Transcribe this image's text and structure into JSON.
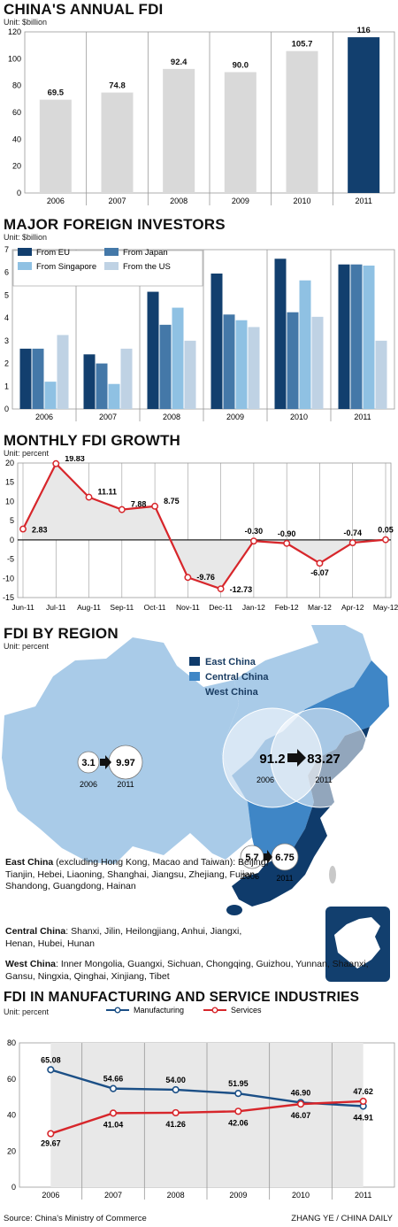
{
  "chart_data": [
    {
      "type": "bar",
      "title": "CHINA'S ANNUAL FDI",
      "unit": "Unit: $billion",
      "categories": [
        "2006",
        "2007",
        "2008",
        "2009",
        "2010",
        "2011"
      ],
      "values": [
        69.5,
        74.8,
        92.4,
        90.0,
        105.7,
        116
      ],
      "value_labels": [
        "69.5",
        "74.8",
        "92.4",
        "90.0",
        "105.7",
        "116"
      ],
      "ylim": [
        0,
        120
      ],
      "yticks": [
        0,
        20,
        40,
        60,
        80,
        100,
        120
      ],
      "colors": {
        "bar": "#d9d9d9",
        "highlight": "#123f6e"
      }
    },
    {
      "type": "bar",
      "title": "MAJOR FOREIGN INVESTORS",
      "unit": "Unit: $billion",
      "categories": [
        "2006",
        "2007",
        "2008",
        "2009",
        "2010",
        "2011"
      ],
      "series": [
        {
          "name": "From EU",
          "color": "#123f6e",
          "values": [
            2.65,
            2.4,
            5.15,
            5.95,
            6.6,
            6.35
          ]
        },
        {
          "name": "From Japan",
          "color": "#4478a8",
          "values": [
            2.65,
            2.0,
            3.7,
            4.15,
            4.25,
            6.35
          ]
        },
        {
          "name": "From Singapore",
          "color": "#8fc1e3",
          "values": [
            1.2,
            1.1,
            4.45,
            3.9,
            5.65,
            6.3
          ]
        },
        {
          "name": "From the US",
          "color": "#bfd2e4",
          "values": [
            3.25,
            2.65,
            3.0,
            3.6,
            4.05,
            3.0
          ]
        }
      ],
      "ylim": [
        0,
        7
      ],
      "yticks": [
        0,
        1,
        2,
        3,
        4,
        5,
        6,
        7
      ]
    },
    {
      "type": "line",
      "title": "MONTHLY FDI GROWTH",
      "unit": "Unit: percent",
      "x": [
        "Jun-11",
        "Jul-11",
        "Aug-11",
        "Sep-11",
        "Oct-11",
        "Nov-11",
        "Dec-11",
        "Jan-12",
        "Feb-12",
        "Mar-12",
        "Apr-12",
        "May-12"
      ],
      "values": [
        2.83,
        19.83,
        11.11,
        7.88,
        8.75,
        -9.76,
        -12.73,
        -0.3,
        -0.9,
        -6.07,
        -0.74,
        0.05
      ],
      "value_labels": [
        "2.83",
        "19.83",
        "11.11",
        "7.88",
        "8.75",
        "-9.76",
        "-12.73",
        "-0.30",
        "-0.90",
        "-6.07",
        "-0.74",
        "0.05"
      ],
      "ylim": [
        -15,
        20
      ],
      "yticks": [
        20,
        15,
        10,
        5,
        0,
        -5,
        -10,
        -15
      ],
      "colors": {
        "line": "#d7262b",
        "fill": "#e8e8e8"
      }
    },
    {
      "type": "line",
      "title": "FDI IN MANUFACTURING AND SERVICE INDUSTRIES",
      "unit": "Unit: percent",
      "categories": [
        "2006",
        "2007",
        "2008",
        "2009",
        "2010",
        "2011"
      ],
      "series": [
        {
          "name": "Manufacturing",
          "color": "#1b4f86",
          "values": [
            65.08,
            54.66,
            54.0,
            51.95,
            46.9,
            44.91
          ],
          "labels": [
            "65.08",
            "54.66",
            "54.00",
            "51.95",
            "46.90",
            "44.91"
          ]
        },
        {
          "name": "Services",
          "color": "#d7262b",
          "values": [
            29.67,
            41.04,
            41.26,
            42.06,
            46.07,
            47.62
          ],
          "labels": [
            "29.67",
            "41.04",
            "41.26",
            "42.06",
            "46.07",
            "47.62"
          ]
        }
      ],
      "ylim": [
        0,
        80
      ],
      "yticks": [
        0,
        20,
        40,
        60,
        80
      ]
    }
  ],
  "region": {
    "title": "FDI BY REGION",
    "unit": "Unit: percent",
    "legend": [
      {
        "name": "East China",
        "color": "#0f3b6b"
      },
      {
        "name": "Central China",
        "color": "#3f86c6"
      },
      {
        "name": "West China",
        "color": "#a9cbe8"
      }
    ],
    "west": {
      "from": "3.1",
      "to": "9.97",
      "y1": "2006",
      "y2": "2011"
    },
    "east": {
      "from": "91.2",
      "to": "83.27",
      "y1": "2006",
      "y2": "2011"
    },
    "central": {
      "from": "5.7",
      "to": "6.75",
      "y1": "2006",
      "y2": "2011"
    },
    "notes": {
      "east_head": "East China",
      "east_body": " (excluding Hong Kong, Macao and Taiwan): Beijing, Tianjin, Hebei, Liaoning, Shanghai, Jiangsu, Zhejiang, Fujian, Shandong, Guangdong, Hainan",
      "central_head": "Central China",
      "central_body": ": Shanxi, Jilin, Heilongjiang, Anhui, Jiangxi, Henan, Hubei, Hunan",
      "west_head": "West China",
      "west_body": ": Inner Mongolia, Guangxi, Sichuan, Chongqing, Guizhou, Yunnan, Shaanxi, Gansu, Ningxia, Qinghai, Xinjiang, Tibet"
    }
  },
  "footer": {
    "source": "Source: China's Ministry of Commerce",
    "credit": "ZHANG YE / CHINA DAILY"
  }
}
